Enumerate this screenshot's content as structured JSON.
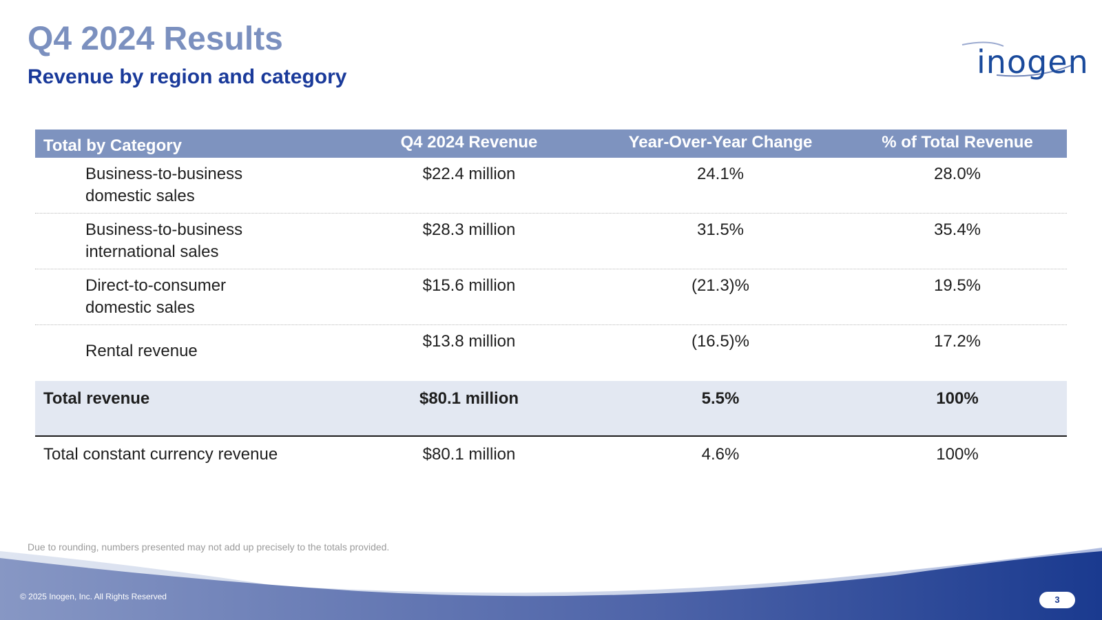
{
  "slide": {
    "title": "Q4 2024 Results",
    "subtitle": "Revenue by region and category",
    "logo_text": "inogen",
    "footnote": "Due to rounding, numbers presented may not add up precisely to the totals provided.",
    "copyright": "© 2025 Inogen, Inc. All Rights Reserved",
    "page_number": "3"
  },
  "colors": {
    "title": "#7b90bf",
    "subtitle": "#1a3a9a",
    "header_bg": "#7e93bf",
    "total_bg": "#e3e8f2",
    "footer_dark": "#1a3a8f"
  },
  "table": {
    "headers": [
      "Total by Category",
      "Q4 2024 Revenue",
      "Year-Over-Year Change",
      "% of Total Revenue"
    ],
    "rows": [
      {
        "category_line1": "Business-to-business",
        "category_line2": "domestic sales",
        "revenue": "$22.4 million",
        "yoy": "24.1%",
        "pct": "28.0%"
      },
      {
        "category_line1": "Business-to-business",
        "category_line2": "international sales",
        "revenue": "$28.3 million",
        "yoy": "31.5%",
        "pct": "35.4%"
      },
      {
        "category_line1": "Direct-to-consumer",
        "category_line2": "domestic sales",
        "revenue": "$15.6 million",
        "yoy": "(21.3)%",
        "pct": "19.5%"
      },
      {
        "category_line1": "Rental revenue",
        "category_line2": "",
        "revenue": "$13.8 million",
        "yoy": "(16.5)%",
        "pct": "17.2%"
      }
    ],
    "total": {
      "category": "Total revenue",
      "revenue": "$80.1 million",
      "yoy": "5.5%",
      "pct": "100%"
    },
    "constant_currency": {
      "category": "Total constant currency revenue",
      "revenue": "$80.1 million",
      "yoy": "4.6%",
      "pct": "100%"
    }
  }
}
